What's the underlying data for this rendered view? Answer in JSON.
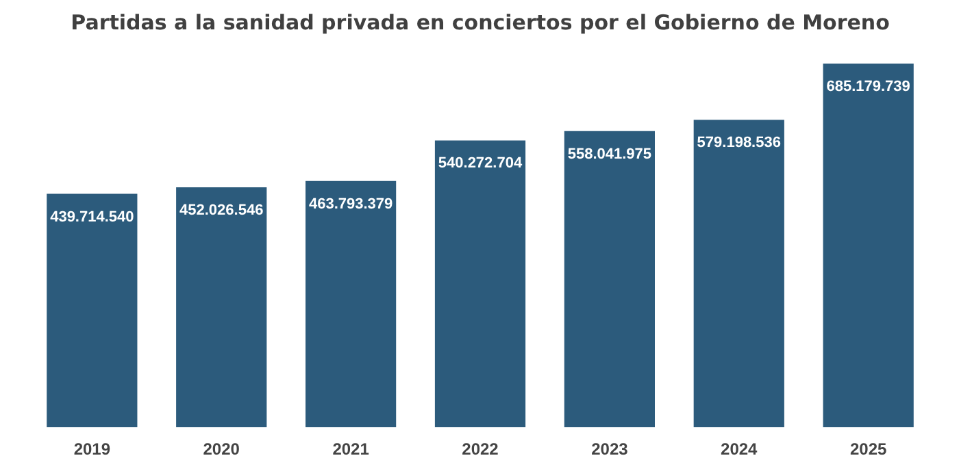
{
  "chart_data": {
    "type": "bar",
    "title": "Partidas a la sanidad privada en conciertos por el Gobierno de Moreno",
    "categories": [
      "2019",
      "2020",
      "2021",
      "2022",
      "2023",
      "2024",
      "2025"
    ],
    "values": [
      439714540,
      452026546,
      463793379,
      540272704,
      558041975,
      579198536,
      685179739
    ],
    "value_labels": [
      "439.714.540",
      "452.026.546",
      "463.793.379",
      "540.272.704",
      "558.041.975",
      "579.198.536",
      "685.179.739"
    ],
    "color": "#2c5b7c",
    "grid": false,
    "tick_labels": "x"
  }
}
